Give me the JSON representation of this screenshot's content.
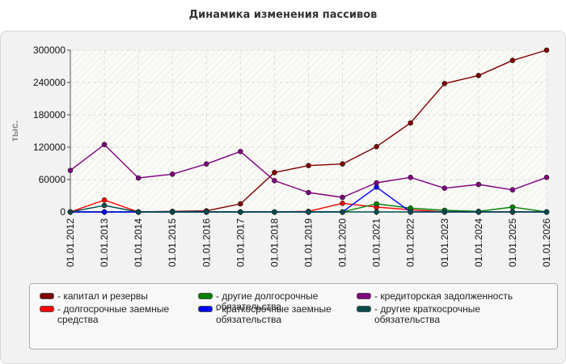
{
  "chart_data": {
    "type": "line",
    "title": "Динамика изменения пассивов",
    "ylabel": "тыс.",
    "xlabel": "",
    "ylim": [
      0,
      300000
    ],
    "yticks": [
      0,
      60000,
      120000,
      180000,
      240000,
      300000
    ],
    "grid": true,
    "legend_position": "bottom",
    "categories": [
      "01.01.2012",
      "01.01.2013",
      "01.01.2014",
      "01.01.2015",
      "01.01.2016",
      "01.01.2017",
      "01.01.2018",
      "01.01.2019",
      "01.01.2020",
      "01.01.2021",
      "01.01.2022",
      "01.01.2023",
      "01.01.2024",
      "01.01.2025",
      "01.01.2026"
    ],
    "series": [
      {
        "name": "капитал и резервы",
        "color": "#7f0000",
        "values": [
          0,
          0,
          0,
          1000,
          2000,
          15000,
          73000,
          86000,
          89000,
          121000,
          165000,
          238000,
          253000,
          281000,
          300000
        ]
      },
      {
        "name": "долгосрочные заемные средства",
        "color": "#ff0000",
        "values": [
          0,
          22000,
          0,
          0,
          0,
          0,
          0,
          1000,
          16000,
          9000,
          4000,
          0,
          0,
          0,
          0
        ]
      },
      {
        "name": "другие долгосрочные обязательства",
        "color": "#008000",
        "values": [
          0,
          0,
          0,
          0,
          0,
          0,
          0,
          0,
          0,
          15000,
          7000,
          3000,
          1000,
          9000,
          0
        ]
      },
      {
        "name": "краткосрочные заемные обязательства",
        "color": "#0000ff",
        "values": [
          0,
          0,
          0,
          0,
          0,
          0,
          0,
          0,
          0,
          46000,
          0,
          0,
          0,
          0,
          0
        ]
      },
      {
        "name": "кредиторская задолженность",
        "color": "#800080",
        "values": [
          77000,
          125000,
          63000,
          70000,
          89000,
          112000,
          58000,
          36000,
          27000,
          54000,
          64000,
          44000,
          51000,
          41000,
          64000
        ]
      },
      {
        "name": "другие краткосрочные обязательства",
        "color": "#004d4d",
        "values": [
          0,
          12000,
          0,
          0,
          0,
          0,
          0,
          0,
          0,
          0,
          0,
          0,
          0,
          0,
          0
        ]
      }
    ]
  }
}
